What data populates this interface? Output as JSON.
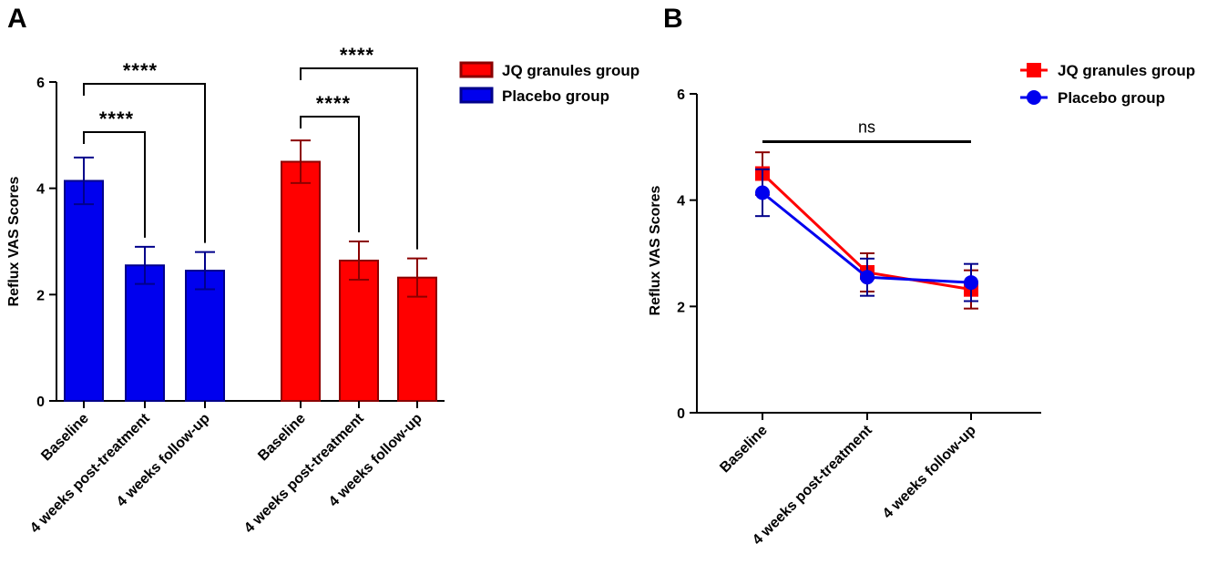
{
  "panels": {
    "a_label": "A",
    "b_label": "B"
  },
  "colors": {
    "jq": "#ff0000",
    "jq_dark": "#8b0000",
    "placebo": "#0000ee",
    "placebo_dark": "#00008b",
    "axis": "#000000"
  },
  "chart_data": [
    {
      "id": "A",
      "type": "bar",
      "title": "",
      "ylabel": "Reflux VAS Scores",
      "ylim": [
        0,
        6
      ],
      "yticks": [
        0,
        2,
        4,
        6
      ],
      "grid": false,
      "legend_position": "top-right",
      "groups": [
        {
          "name": "Placebo group",
          "color_key": "placebo",
          "categories": [
            "Baseline",
            "4 weeks post-treatment",
            "4 weeks follow-up"
          ],
          "values": [
            4.14,
            2.55,
            2.45
          ],
          "errors": [
            0.44,
            0.35,
            0.35
          ]
        },
        {
          "name": "JQ granules group",
          "color_key": "jq",
          "categories": [
            "Baseline",
            "4 weeks post-treatment",
            "4 weeks follow-up"
          ],
          "values": [
            4.5,
            2.64,
            2.32
          ],
          "errors": [
            0.4,
            0.36,
            0.36
          ]
        }
      ],
      "legend": [
        "JQ granules group",
        "Placebo group"
      ],
      "significance": [
        {
          "group": 0,
          "from": 0,
          "to": 1,
          "label": "****",
          "level": 1
        },
        {
          "group": 0,
          "from": 0,
          "to": 2,
          "label": "****",
          "level": 2
        },
        {
          "group": 1,
          "from": 0,
          "to": 1,
          "label": "****",
          "level": 1
        },
        {
          "group": 1,
          "from": 0,
          "to": 2,
          "label": "****",
          "level": 2
        }
      ]
    },
    {
      "id": "B",
      "type": "line",
      "title": "",
      "ylabel": "Reflux VAS Scores",
      "ylim": [
        0,
        6
      ],
      "yticks": [
        0,
        2,
        4,
        6
      ],
      "grid": false,
      "legend_position": "top-right",
      "categories": [
        "Baseline",
        "4 weeks post-treatment",
        "4 weeks follow-up"
      ],
      "series": [
        {
          "name": "JQ granules group",
          "color_key": "jq",
          "marker": "square",
          "values": [
            4.5,
            2.64,
            2.32
          ],
          "errors": [
            0.4,
            0.36,
            0.36
          ]
        },
        {
          "name": "Placebo group",
          "color_key": "placebo",
          "marker": "circle",
          "values": [
            4.14,
            2.55,
            2.45
          ],
          "errors": [
            0.44,
            0.35,
            0.35
          ]
        }
      ],
      "annotation": {
        "label": "ns",
        "value": 5.1
      }
    }
  ]
}
